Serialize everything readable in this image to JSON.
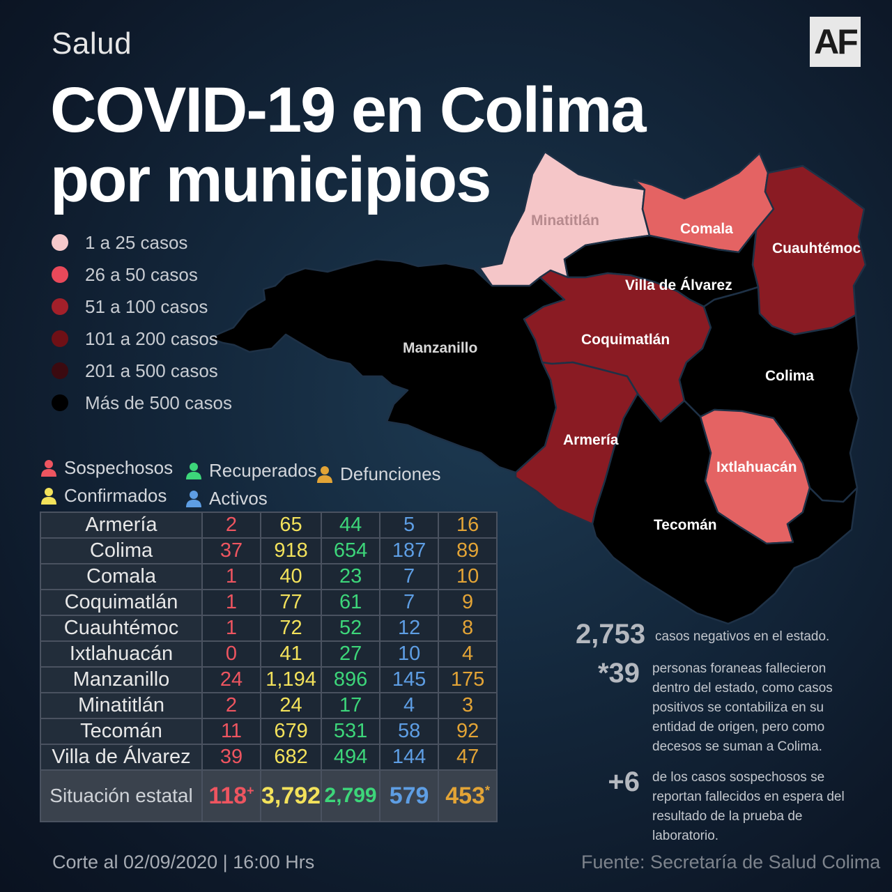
{
  "header": {
    "section": "Salud",
    "logo": "AF",
    "title_line1": "COVID-19 en Colima",
    "title_line2": "por municipios"
  },
  "legend": [
    {
      "label": "1 a 25 casos",
      "color": "#f6c9cb"
    },
    {
      "label": "26 a  50 casos",
      "color": "#e8495a"
    },
    {
      "label": "51 a  100 casos",
      "color": "#a3202a"
    },
    {
      "label": "101 a  200 casos",
      "color": "#6f1016"
    },
    {
      "label": "201  a  500 casos",
      "color": "#3b0a10"
    },
    {
      "label": "Más de 500 casos",
      "color": "#000000"
    }
  ],
  "categories": {
    "sospechosos": {
      "label": "Sospechosos",
      "color": "#ee5560"
    },
    "confirmados": {
      "label": "Confirmados",
      "color": "#f3e25b"
    },
    "recuperados": {
      "label": "Recuperados",
      "color": "#3dd67a"
    },
    "activos": {
      "label": "Activos",
      "color": "#5e9ee4"
    },
    "defunciones": {
      "label": "Defunciones",
      "color": "#e3a436"
    }
  },
  "map_labels": {
    "minatitlan": "Minatitlán",
    "comala": "Comala",
    "cuauhtemoc": "Cuauhtémoc",
    "villa": "Villa de Álvarez",
    "manzanillo": "Manzanillo",
    "coquimatlan": "Coquimatlán",
    "colima": "Colima",
    "armeria": "Armería",
    "ixtlahuacan": "Ixtlahuacán",
    "tecoman": "Tecomán"
  },
  "table": {
    "rows": [
      {
        "name": "Armería",
        "sosp": "2",
        "conf": "65",
        "rec": "44",
        "act": "5",
        "def": "16"
      },
      {
        "name": "Colima",
        "sosp": "37",
        "conf": "918",
        "rec": "654",
        "act": "187",
        "def": "89"
      },
      {
        "name": "Comala",
        "sosp": "1",
        "conf": "40",
        "rec": "23",
        "act": "7",
        "def": "10"
      },
      {
        "name": "Coquimatlán",
        "sosp": "1",
        "conf": "77",
        "rec": "61",
        "act": "7",
        "def": "9"
      },
      {
        "name": "Cuauhtémoc",
        "sosp": "1",
        "conf": "72",
        "rec": "52",
        "act": "12",
        "def": "8"
      },
      {
        "name": "Ixtlahuacán",
        "sosp": "0",
        "conf": "41",
        "rec": "27",
        "act": "10",
        "def": "4"
      },
      {
        "name": "Manzanillo",
        "sosp": "24",
        "conf": "1,194",
        "rec": "896",
        "act": "145",
        "def": "175"
      },
      {
        "name": "Minatitlán",
        "sosp": "2",
        "conf": "24",
        "rec": "17",
        "act": "4",
        "def": "3"
      },
      {
        "name": "Tecomán",
        "sosp": "11",
        "conf": "679",
        "rec": "531",
        "act": "58",
        "def": "92"
      },
      {
        "name": "Villa de Álvarez",
        "sosp": "39",
        "conf": "682",
        "rec": "494",
        "act": "144",
        "def": "47"
      }
    ],
    "total": {
      "name": "Situación estatal",
      "sosp": "118",
      "sosp_mark": "+",
      "conf": "3,792",
      "rec": "2,799",
      "act": "579",
      "def": "453",
      "def_mark": "*"
    }
  },
  "notes": {
    "negativos_value": "2,753",
    "negativos_text": "casos negativos en el estado.",
    "foraneas_value": "*39",
    "foraneas_text": "personas foraneas fallecieron dentro del estado, como casos positivos se contabiliza en su entidad de origen, pero como decesos se suman a Colima.",
    "sospechosos_value": "+6",
    "sospechosos_text": "de los casos sospechosos se reportan fallecidos en espera del resultado de la prueba de laboratorio."
  },
  "footer": {
    "corte": "Corte al 02/09/2020 | 16:00 Hrs",
    "fuente": "Fuente: Secretaría de Salud Colima"
  }
}
